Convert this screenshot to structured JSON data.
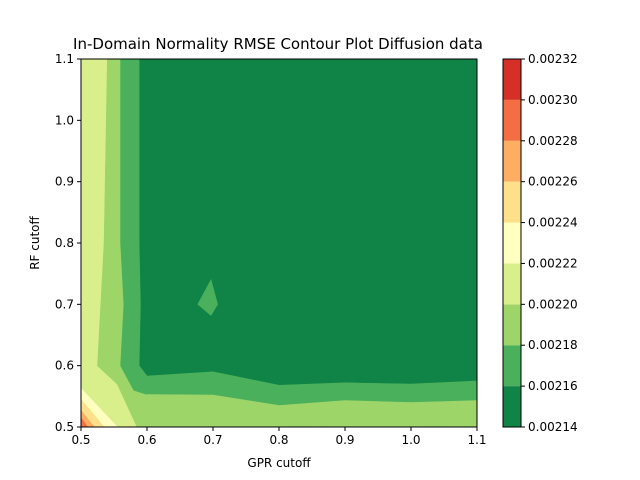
{
  "chart_data": {
    "type": "contour",
    "title": "In-Domain Normality RMSE Contour Plot Diffusion data",
    "xlabel": "GPR cutoff",
    "ylabel": "RF cutoff",
    "xlim": [
      0.5,
      1.1
    ],
    "ylim": [
      0.5,
      1.1
    ],
    "x_ticks": [
      "0.5",
      "0.6",
      "0.7",
      "0.8",
      "0.9",
      "1.0",
      "1.1"
    ],
    "y_ticks": [
      "0.5",
      "0.6",
      "0.7",
      "0.8",
      "0.9",
      "1.0",
      "1.1"
    ],
    "colorbar": {
      "levels": [
        0.00214,
        0.00216,
        0.00218,
        0.0022,
        0.00222,
        0.00224,
        0.00226,
        0.00228,
        0.0023,
        0.00232
      ],
      "tick_labels": [
        "0.00214",
        "0.00216",
        "0.00218",
        "0.00220",
        "0.00222",
        "0.00224",
        "0.00226",
        "0.00228",
        "0.00230",
        "0.00232"
      ],
      "colors": [
        "#0f8446",
        "#4bb05c",
        "#9dd569",
        "#d9ef8b",
        "#ffffbf",
        "#fee08b",
        "#fdae61",
        "#f46d43",
        "#d62f27"
      ]
    },
    "regions": [
      {
        "level_index": 3,
        "polygon": [
          [
            0.5,
            0.5
          ],
          [
            0.5,
            1.1
          ],
          [
            0.54,
            1.1
          ],
          [
            0.535,
            0.8
          ],
          [
            0.525,
            0.6
          ],
          [
            0.555,
            0.57
          ],
          [
            0.585,
            0.5
          ]
        ]
      },
      {
        "level_index": 2,
        "polygon": [
          [
            0.54,
            1.1
          ],
          [
            0.56,
            1.1
          ],
          [
            0.56,
            0.8
          ],
          [
            0.565,
            0.7
          ],
          [
            0.56,
            0.6
          ],
          [
            0.6,
            0.565
          ],
          [
            0.6,
            0.52
          ],
          [
            0.7,
            0.525
          ],
          [
            0.8,
            0.505
          ],
          [
            0.9,
            0.5
          ],
          [
            1.0,
            0.5
          ],
          [
            1.1,
            0.508
          ],
          [
            1.1,
            0.5
          ],
          [
            0.585,
            0.5
          ],
          [
            0.555,
            0.57
          ],
          [
            0.525,
            0.6
          ],
          [
            0.535,
            0.8
          ]
        ]
      },
      {
        "level_index": 1,
        "polygon": [
          [
            0.56,
            1.1
          ],
          [
            0.588,
            1.1
          ],
          [
            0.588,
            0.8
          ],
          [
            0.59,
            0.7
          ],
          [
            0.588,
            0.6
          ],
          [
            0.6,
            0.583
          ],
          [
            0.7,
            0.59
          ],
          [
            0.8,
            0.568
          ],
          [
            0.9,
            0.572
          ],
          [
            1.0,
            0.57
          ],
          [
            1.1,
            0.575
          ],
          [
            1.1,
            0.543
          ],
          [
            1.0,
            0.54
          ],
          [
            0.9,
            0.543
          ],
          [
            0.8,
            0.535
          ],
          [
            0.7,
            0.552
          ],
          [
            0.6,
            0.553
          ],
          [
            0.58,
            0.56
          ],
          [
            0.56,
            0.6
          ],
          [
            0.565,
            0.7
          ],
          [
            0.56,
            0.8
          ]
        ]
      },
      {
        "level_index": 1,
        "polygon": [
          [
            0.677,
            0.7
          ],
          [
            0.697,
            0.74
          ],
          [
            0.707,
            0.7
          ],
          [
            0.697,
            0.682
          ]
        ]
      },
      {
        "level_index": 2,
        "polygon": [
          [
            0.6,
            0.52
          ],
          [
            0.6,
            0.553
          ],
          [
            0.7,
            0.552
          ],
          [
            0.8,
            0.535
          ],
          [
            0.9,
            0.543
          ],
          [
            1.0,
            0.54
          ],
          [
            1.1,
            0.543
          ],
          [
            1.1,
            0.508
          ],
          [
            1.0,
            0.5
          ],
          [
            0.9,
            0.5
          ],
          [
            0.8,
            0.505
          ],
          [
            0.7,
            0.525
          ]
        ]
      },
      {
        "level_index": 3,
        "polygon": [
          [
            0.5,
            0.545
          ],
          [
            0.5,
            0.575
          ],
          [
            0.56,
            0.51
          ],
          [
            0.56,
            0.5
          ],
          [
            0.555,
            0.5
          ]
        ]
      },
      {
        "level_index": 4,
        "polygon": [
          [
            0.5,
            0.537
          ],
          [
            0.5,
            0.563
          ],
          [
            0.555,
            0.5
          ],
          [
            0.535,
            0.5
          ]
        ]
      },
      {
        "level_index": 5,
        "polygon": [
          [
            0.5,
            0.527
          ],
          [
            0.5,
            0.545
          ],
          [
            0.535,
            0.5
          ],
          [
            0.52,
            0.5
          ]
        ]
      },
      {
        "level_index": 6,
        "polygon": [
          [
            0.5,
            0.515
          ],
          [
            0.5,
            0.527
          ],
          [
            0.52,
            0.5
          ],
          [
            0.51,
            0.5
          ]
        ]
      },
      {
        "level_index": 7,
        "polygon": [
          [
            0.5,
            0.5
          ],
          [
            0.5,
            0.515
          ],
          [
            0.51,
            0.5
          ]
        ]
      }
    ]
  }
}
